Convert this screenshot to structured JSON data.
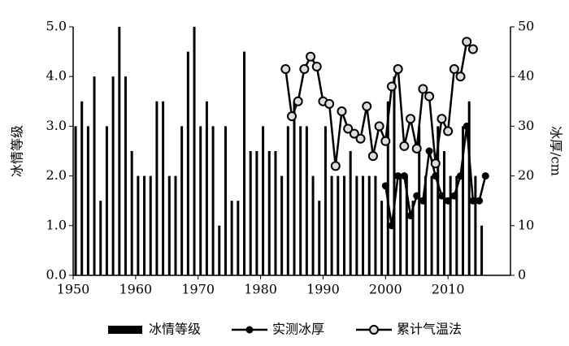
{
  "chart_data": {
    "type": "bar-line",
    "y_label": "冰情等级",
    "y2_label": "冰厚/cm",
    "xlim": [
      1950,
      2020
    ],
    "xticks": [
      1950,
      1960,
      1970,
      1980,
      1990,
      2000,
      2010
    ],
    "ylim": [
      0,
      5
    ],
    "yticks": [
      {
        "value": 0,
        "label": "0.0"
      },
      {
        "value": 1,
        "label": "1.0"
      },
      {
        "value": 2,
        "label": "2.0"
      },
      {
        "value": 3,
        "label": "3.0"
      },
      {
        "value": 4,
        "label": "4.0"
      },
      {
        "value": 5,
        "label": "5.0"
      }
    ],
    "y2lim": [
      0,
      50
    ],
    "y2ticks": [
      0,
      10,
      20,
      30,
      40,
      50
    ],
    "series": [
      {
        "name": "冰情等级",
        "kind": "bar",
        "color": "#000000",
        "x": [
          1950,
          1951,
          1952,
          1953,
          1954,
          1955,
          1956,
          1957,
          1958,
          1959,
          1960,
          1961,
          1962,
          1963,
          1964,
          1965,
          1966,
          1967,
          1968,
          1969,
          1970,
          1971,
          1972,
          1973,
          1974,
          1975,
          1976,
          1977,
          1978,
          1979,
          1980,
          1981,
          1982,
          1983,
          1984,
          1985,
          1986,
          1987,
          1988,
          1989,
          1990,
          1991,
          1992,
          1993,
          1994,
          1995,
          1996,
          1997,
          1998,
          1999,
          2000,
          2001,
          2002,
          2003,
          2004,
          2005,
          2006,
          2007,
          2008,
          2009,
          2010,
          2011,
          2012,
          2013,
          2014,
          2015
        ],
        "values": [
          3,
          3.5,
          3,
          4,
          1.5,
          3,
          4,
          5,
          4,
          2.5,
          2,
          2,
          2,
          3.5,
          3.5,
          2,
          2,
          3,
          4.5,
          5,
          3,
          3.5,
          3,
          1,
          3,
          1.5,
          1.5,
          4.5,
          2.5,
          2.5,
          3,
          2.5,
          2.5,
          2,
          3,
          3.5,
          3,
          3,
          2,
          1.5,
          3,
          2,
          2,
          2,
          2.5,
          2,
          2,
          2,
          2,
          1.5,
          3.5,
          4,
          2,
          2,
          1.5,
          3,
          2,
          2,
          3,
          2.5,
          2,
          2,
          3,
          3.5,
          2,
          1
        ]
      },
      {
        "name": "实测冰厚",
        "kind": "line-filled",
        "color": "#000000",
        "axis": "y2",
        "x": [
          2000,
          2001,
          2002,
          2003,
          2004,
          2005,
          2006,
          2007,
          2008,
          2009,
          2010,
          2011,
          2012,
          2013,
          2014,
          2015,
          2016
        ],
        "values": [
          18,
          10,
          20,
          20,
          12,
          16,
          15,
          25,
          20,
          16,
          15,
          16,
          20,
          30,
          15,
          15,
          20
        ]
      },
      {
        "name": "累计气温法",
        "kind": "line-open",
        "color": "#000000",
        "axis": "y2",
        "x": [
          1984,
          1985,
          1986,
          1987,
          1988,
          1989,
          1990,
          1991,
          1992,
          1993,
          1994,
          1995,
          1996,
          1997,
          1998,
          1999,
          2000,
          2001,
          2002,
          2003,
          2004,
          2005,
          2006,
          2007,
          2008,
          2009,
          2010,
          2011,
          2012,
          2013,
          2014
        ],
        "values": [
          41.5,
          32,
          35,
          41.5,
          44,
          42,
          35,
          34.5,
          22,
          33,
          29.5,
          28.5,
          27.5,
          34,
          24,
          30,
          27,
          38,
          41.5,
          26,
          31.5,
          25.5,
          37.5,
          36,
          22.5,
          31.5,
          29,
          41.5,
          40,
          47,
          45.5
        ]
      }
    ]
  }
}
